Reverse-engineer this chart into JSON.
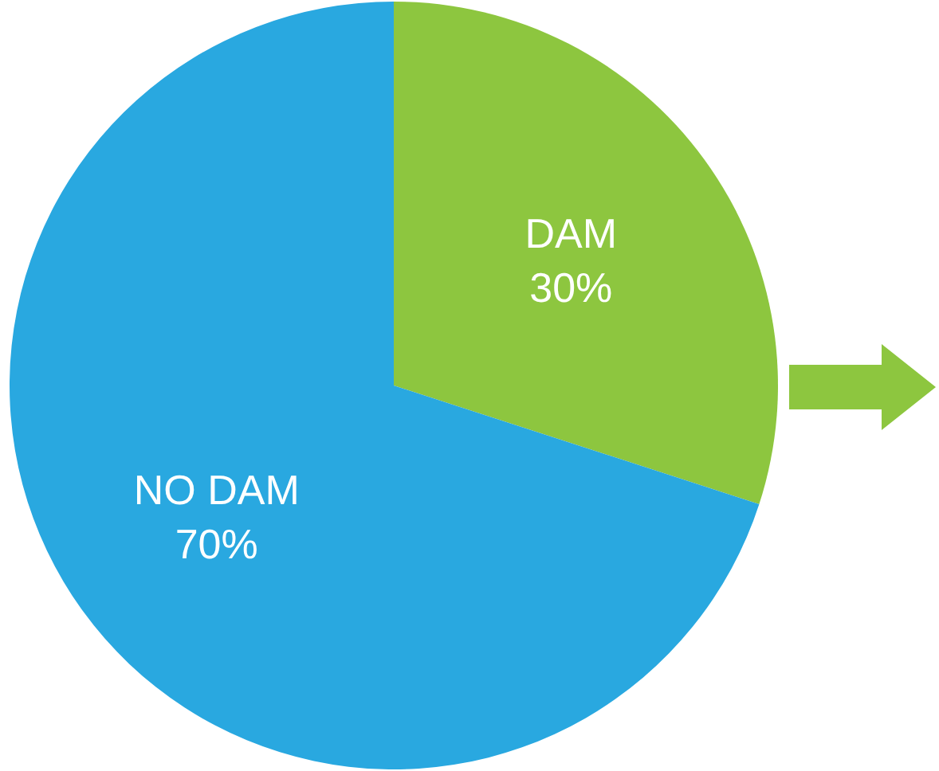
{
  "chart_data": {
    "type": "pie",
    "categories": [
      "DAM",
      "NO DAM"
    ],
    "values": [
      30,
      70
    ],
    "value_labels": [
      "30%",
      "70%"
    ],
    "colors": [
      "#8dc63f",
      "#29a8e0"
    ],
    "legend": false
  }
}
